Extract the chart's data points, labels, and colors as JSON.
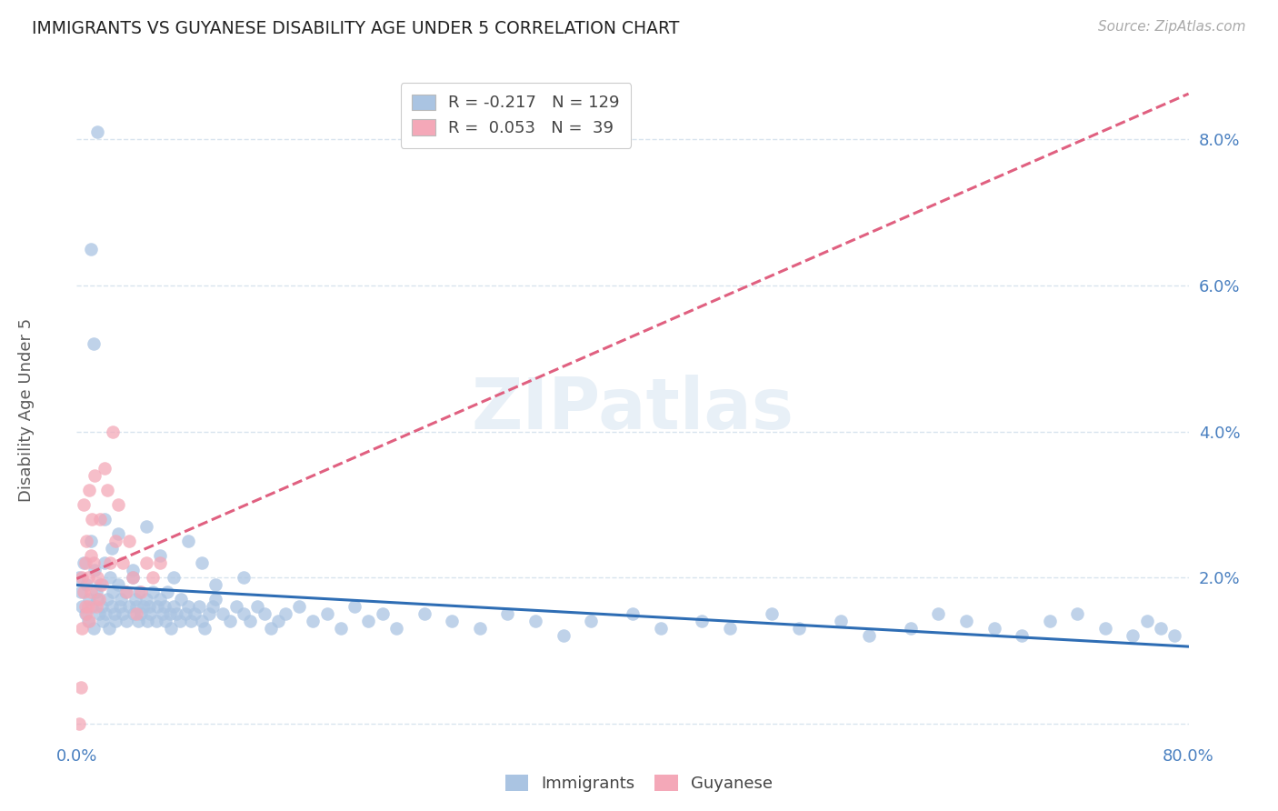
{
  "title": "IMMIGRANTS VS GUYANESE DISABILITY AGE UNDER 5 CORRELATION CHART",
  "source": "Source: ZipAtlas.com",
  "ylabel": "Disability Age Under 5",
  "watermark": "ZIPatlas",
  "immigrants_color": "#aac4e2",
  "guyanese_color": "#f4a8b8",
  "immigrants_line_color": "#2e6db4",
  "guyanese_line_color": "#e06080",
  "xlim": [
    0.0,
    0.8
  ],
  "ylim": [
    -0.002,
    0.088
  ],
  "yticks": [
    0.0,
    0.02,
    0.04,
    0.06,
    0.08
  ],
  "ytick_labels": [
    "",
    "2.0%",
    "4.0%",
    "6.0%",
    "8.0%"
  ],
  "grid_color": "#d8e4ee",
  "immigrants_R": -0.217,
  "immigrants_N": 129,
  "guyanese_R": 0.053,
  "guyanese_N": 39,
  "imm_x": [
    0.002,
    0.003,
    0.004,
    0.005,
    0.006,
    0.007,
    0.008,
    0.009,
    0.01,
    0.011,
    0.012,
    0.013,
    0.014,
    0.015,
    0.016,
    0.017,
    0.018,
    0.019,
    0.02,
    0.021,
    0.022,
    0.023,
    0.024,
    0.025,
    0.026,
    0.027,
    0.028,
    0.03,
    0.031,
    0.032,
    0.033,
    0.035,
    0.036,
    0.038,
    0.04,
    0.041,
    0.042,
    0.043,
    0.044,
    0.045,
    0.046,
    0.048,
    0.05,
    0.051,
    0.052,
    0.053,
    0.055,
    0.057,
    0.058,
    0.06,
    0.062,
    0.063,
    0.064,
    0.065,
    0.067,
    0.068,
    0.07,
    0.072,
    0.074,
    0.075,
    0.078,
    0.08,
    0.082,
    0.085,
    0.088,
    0.09,
    0.092,
    0.095,
    0.098,
    0.1,
    0.105,
    0.11,
    0.115,
    0.12,
    0.125,
    0.13,
    0.135,
    0.14,
    0.145,
    0.15,
    0.16,
    0.17,
    0.18,
    0.19,
    0.2,
    0.21,
    0.22,
    0.23,
    0.25,
    0.27,
    0.29,
    0.31,
    0.33,
    0.35,
    0.37,
    0.4,
    0.42,
    0.45,
    0.47,
    0.5,
    0.52,
    0.55,
    0.57,
    0.6,
    0.62,
    0.64,
    0.66,
    0.68,
    0.7,
    0.72,
    0.74,
    0.76,
    0.77,
    0.78,
    0.79,
    0.01,
    0.012,
    0.015,
    0.02,
    0.025,
    0.03,
    0.04,
    0.05,
    0.06,
    0.07,
    0.08,
    0.09,
    0.1,
    0.12
  ],
  "imm_y": [
    0.02,
    0.018,
    0.016,
    0.022,
    0.015,
    0.019,
    0.014,
    0.017,
    0.025,
    0.016,
    0.013,
    0.021,
    0.018,
    0.017,
    0.015,
    0.019,
    0.016,
    0.014,
    0.022,
    0.015,
    0.017,
    0.013,
    0.02,
    0.016,
    0.018,
    0.015,
    0.014,
    0.019,
    0.016,
    0.017,
    0.015,
    0.018,
    0.014,
    0.016,
    0.02,
    0.015,
    0.017,
    0.016,
    0.014,
    0.018,
    0.015,
    0.016,
    0.017,
    0.014,
    0.016,
    0.015,
    0.018,
    0.014,
    0.016,
    0.017,
    0.015,
    0.016,
    0.014,
    0.018,
    0.015,
    0.013,
    0.016,
    0.015,
    0.014,
    0.017,
    0.015,
    0.016,
    0.014,
    0.015,
    0.016,
    0.014,
    0.013,
    0.015,
    0.016,
    0.017,
    0.015,
    0.014,
    0.016,
    0.015,
    0.014,
    0.016,
    0.015,
    0.013,
    0.014,
    0.015,
    0.016,
    0.014,
    0.015,
    0.013,
    0.016,
    0.014,
    0.015,
    0.013,
    0.015,
    0.014,
    0.013,
    0.015,
    0.014,
    0.012,
    0.014,
    0.015,
    0.013,
    0.014,
    0.013,
    0.015,
    0.013,
    0.014,
    0.012,
    0.013,
    0.015,
    0.014,
    0.013,
    0.012,
    0.014,
    0.015,
    0.013,
    0.012,
    0.014,
    0.013,
    0.012,
    0.065,
    0.052,
    0.081,
    0.028,
    0.024,
    0.026,
    0.021,
    0.027,
    0.023,
    0.02,
    0.025,
    0.022,
    0.019,
    0.02
  ],
  "guy_x": [
    0.002,
    0.003,
    0.004,
    0.004,
    0.005,
    0.005,
    0.006,
    0.006,
    0.007,
    0.007,
    0.008,
    0.008,
    0.009,
    0.009,
    0.01,
    0.01,
    0.011,
    0.012,
    0.013,
    0.014,
    0.015,
    0.016,
    0.017,
    0.018,
    0.02,
    0.022,
    0.024,
    0.026,
    0.028,
    0.03,
    0.033,
    0.036,
    0.038,
    0.04,
    0.043,
    0.046,
    0.05,
    0.055,
    0.06
  ],
  "guy_y": [
    0.0,
    0.005,
    0.013,
    0.02,
    0.018,
    0.03,
    0.016,
    0.022,
    0.015,
    0.025,
    0.016,
    0.02,
    0.032,
    0.014,
    0.023,
    0.018,
    0.028,
    0.022,
    0.034,
    0.016,
    0.02,
    0.017,
    0.028,
    0.019,
    0.035,
    0.032,
    0.022,
    0.04,
    0.025,
    0.03,
    0.022,
    0.018,
    0.025,
    0.02,
    0.015,
    0.018,
    0.022,
    0.02,
    0.022
  ]
}
